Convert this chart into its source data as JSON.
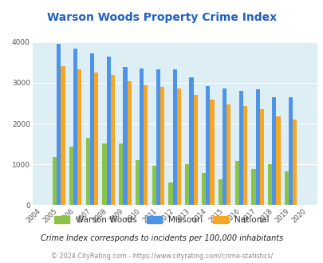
{
  "title": "Warson Woods Property Crime Index",
  "subtitle": "Crime Index corresponds to incidents per 100,000 inhabitants",
  "footer": "© 2024 CityRating.com - https://www.cityrating.com/crime-statistics/",
  "years": [
    "2004",
    "2005",
    "2006",
    "2007",
    "2008",
    "2009",
    "2010",
    "2011",
    "2012",
    "2013",
    "2014",
    "2015",
    "2016",
    "2017",
    "2018",
    "2019",
    "2020"
  ],
  "warson_woods": [
    0,
    1190,
    1440,
    1650,
    1510,
    1510,
    1100,
    970,
    550,
    1010,
    795,
    640,
    1090,
    890,
    1010,
    830,
    0
  ],
  "missouri": [
    0,
    3960,
    3840,
    3730,
    3650,
    3390,
    3360,
    3330,
    3330,
    3130,
    2920,
    2860,
    2800,
    2840,
    2640,
    2640,
    0
  ],
  "national": [
    0,
    3400,
    3340,
    3260,
    3190,
    3040,
    2940,
    2900,
    2860,
    2700,
    2580,
    2480,
    2440,
    2360,
    2170,
    2100,
    0
  ],
  "color_ww": "#8bc34a",
  "color_mo": "#4d94e8",
  "color_nat": "#f5a623",
  "bg_color": "#deeef5",
  "title_color": "#2060c0",
  "legend_text_color": "#333333",
  "subtitle_color": "#222222",
  "footer_color": "#888888",
  "footer_link_color": "#4488cc",
  "ylim": [
    0,
    4000
  ],
  "yticks": [
    0,
    1000,
    2000,
    3000,
    4000
  ],
  "bar_width": 0.25
}
